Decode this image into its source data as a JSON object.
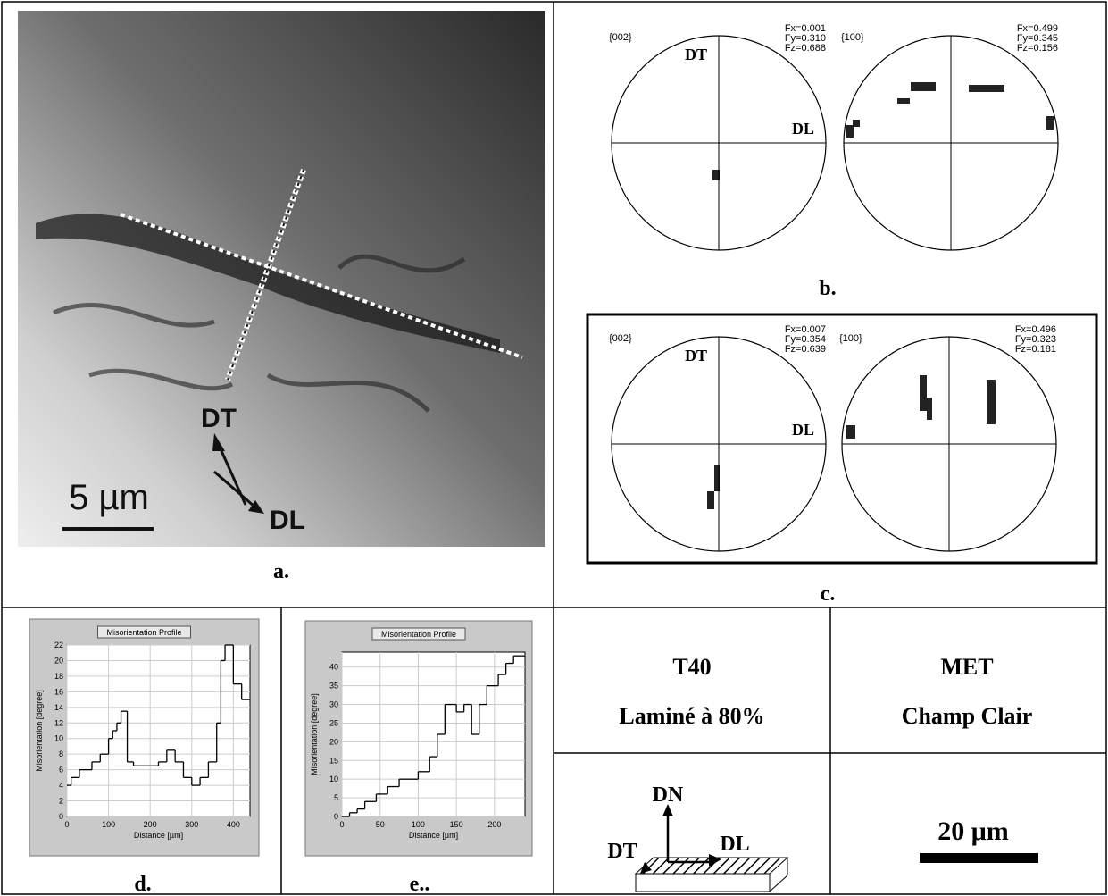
{
  "panel_a": {
    "scale_bar": "5 µm",
    "axis_dt": "DT",
    "axis_dl": "DL",
    "label": "a."
  },
  "panel_b": {
    "label": "b.",
    "figures": [
      {
        "plane": "{002}",
        "fx": "Fx=0.001",
        "fy": "Fy=0.310",
        "fz": "Fz=0.688",
        "dt": "DT",
        "dl": "DL"
      },
      {
        "plane": "{100}",
        "fx": "Fx=0.499",
        "fy": "Fy=0.345",
        "fz": "Fz=0.156"
      }
    ]
  },
  "panel_c": {
    "label": "c.",
    "figures": [
      {
        "plane": "{002}",
        "fx": "Fx=0.007",
        "fy": "Fy=0.354",
        "fz": "Fz=0.639",
        "dt": "DT",
        "dl": "DL"
      },
      {
        "plane": "{100}",
        "fx": "Fx=0.496",
        "fy": "Fy=0.323",
        "fz": "Fz=0.181"
      }
    ]
  },
  "chart_data": [
    {
      "type": "line",
      "drawstyle": "steps-post",
      "title": "Misorientation Profile",
      "xlabel": "Distance [µm]",
      "ylabel": "Misorientation [degree]",
      "label": "d.",
      "x": [
        0,
        10,
        30,
        60,
        80,
        100,
        110,
        120,
        130,
        145,
        160,
        200,
        220,
        240,
        260,
        280,
        300,
        320,
        340,
        360,
        370,
        380,
        400,
        420,
        440
      ],
      "values": [
        4,
        5,
        6,
        7,
        8,
        10,
        11,
        12,
        13.5,
        7,
        6.5,
        6.5,
        7,
        8.5,
        7,
        5,
        4,
        5,
        7,
        12,
        20,
        22,
        17,
        15,
        15
      ],
      "color": "#000000",
      "xlim": [
        0,
        440
      ],
      "xticks": [
        0,
        100,
        200,
        300,
        400
      ],
      "ylim": [
        0,
        22
      ],
      "yticks": [
        0,
        2,
        4,
        6,
        8,
        10,
        12,
        14,
        16,
        18,
        20,
        22
      ],
      "grid": true
    },
    {
      "type": "line",
      "drawstyle": "steps-post",
      "title": "Misorientation Profile",
      "xlabel": "Distance [µm]",
      "ylabel": "Misorientation [degree]",
      "label": "e..",
      "x": [
        0,
        10,
        20,
        30,
        45,
        60,
        75,
        90,
        100,
        115,
        125,
        135,
        150,
        160,
        170,
        180,
        190,
        205,
        215,
        225,
        240
      ],
      "values": [
        0,
        1,
        2,
        4,
        6,
        8,
        10,
        10,
        12,
        16,
        22,
        30,
        28,
        30,
        22,
        30,
        35,
        38,
        41,
        43,
        43
      ],
      "color": "#000000",
      "xlim": [
        0,
        240
      ],
      "xticks": [
        0,
        50,
        100,
        150,
        200
      ],
      "ylim": [
        0,
        44
      ],
      "yticks": [
        0,
        5,
        10,
        15,
        20,
        25,
        30,
        35,
        40
      ],
      "grid": true
    }
  ],
  "info": {
    "sample": "T40",
    "process": "Laminé à 80%",
    "method": "MET",
    "mode": "Champ Clair",
    "axis_dn": "DN",
    "axis_dt": "DT",
    "axis_dl": "DL",
    "scale_bar": "20 μm"
  }
}
